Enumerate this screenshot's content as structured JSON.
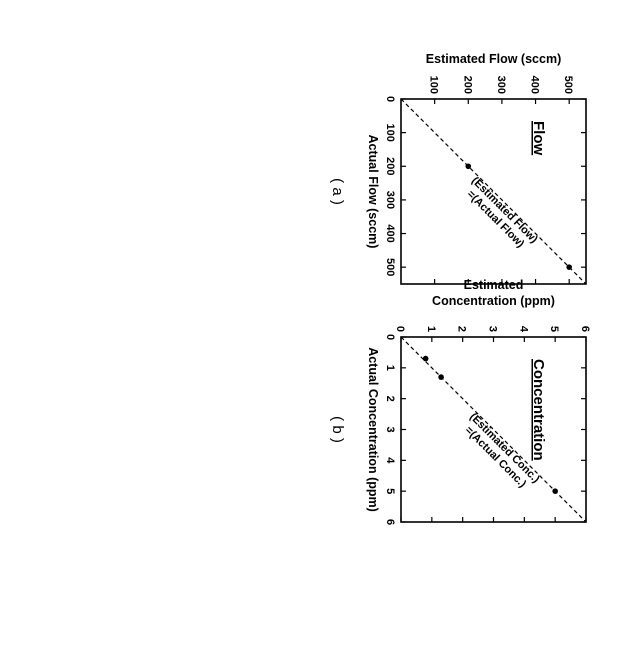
{
  "chart_data": [
    {
      "type": "scatter",
      "panel_caption": "( a )",
      "title": "Flow",
      "xlabel": "Actual Flow (sccm)",
      "ylabel": "Estimated Flow (sccm)",
      "xlim": [
        0,
        550
      ],
      "ylim": [
        0,
        550
      ],
      "xticks": [
        "0",
        "100",
        "200",
        "300",
        "400",
        "500"
      ],
      "yticks": [
        "100",
        "200",
        "300",
        "400",
        "500"
      ],
      "grid": false,
      "reference_line": {
        "style": "dashed",
        "slope": 1,
        "label_line1": "(Estimated Flow)",
        "label_line2": "=(Actual Flow)"
      },
      "series": [
        {
          "x": [
            200,
            500
          ],
          "y": [
            200,
            500
          ]
        }
      ]
    },
    {
      "type": "scatter",
      "panel_caption": "( b )",
      "title": "Concentration",
      "xlabel": "Actual Concentration (ppm)",
      "ylabel_line1": "Estimated",
      "ylabel_line2": "Concentration (ppm)",
      "xlim": [
        0,
        6
      ],
      "ylim": [
        0,
        6
      ],
      "xticks": [
        "0",
        "1",
        "2",
        "3",
        "4",
        "5",
        "6"
      ],
      "yticks": [
        "0",
        "1",
        "2",
        "3",
        "4",
        "5",
        "6"
      ],
      "grid": false,
      "reference_line": {
        "style": "dashed",
        "slope": 1,
        "label_line1": "(Estimated Conc.)",
        "label_line2": "=(Actual Conc.)"
      },
      "series": [
        {
          "x": [
            0.7,
            1.3,
            5.0
          ],
          "y": [
            0.8,
            1.3,
            5.0
          ]
        }
      ]
    }
  ]
}
